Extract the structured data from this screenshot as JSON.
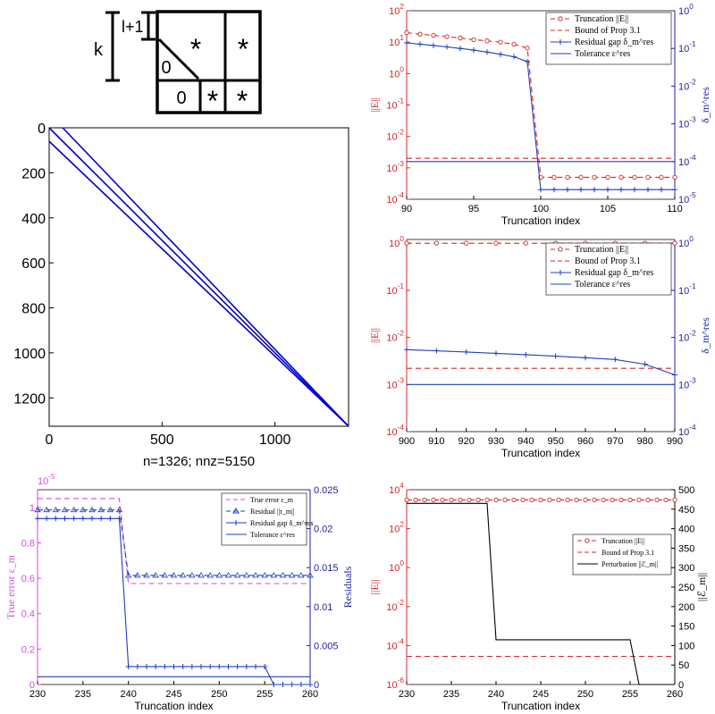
{
  "schematic": {
    "k_label": "k",
    "l_label": "l+1",
    "cells": [
      "*",
      "*",
      "0",
      "0",
      "*",
      "*"
    ]
  },
  "chart_data": [
    {
      "id": "spy",
      "type": "scatter",
      "caption": "n=1326;  nnz=5150",
      "n": 1326,
      "nnz": 5150,
      "xlim": [
        0,
        1326
      ],
      "ylim": [
        0,
        1326
      ],
      "xticks": [
        0,
        500,
        1000
      ],
      "yticks": [
        0,
        200,
        400,
        600,
        800,
        1000,
        1200
      ],
      "series": [
        {
          "x": [
            0,
            1326
          ],
          "y": [
            0,
            1326
          ]
        },
        {
          "x": [
            0,
            1326
          ],
          "y": [
            60,
            1326
          ]
        },
        {
          "x": [
            60,
            1326
          ],
          "y": [
            0,
            1326
          ]
        }
      ],
      "color": "#0000cc"
    },
    {
      "id": "panel-b",
      "type": "line",
      "xlabel": "Truncation index",
      "ylabel_left": "||E||",
      "ylabel_right": "δ_m^res",
      "xlim": [
        90,
        110
      ],
      "xticks": [
        90,
        95,
        100,
        105,
        110
      ],
      "ylim_left": [
        0.0001,
        100.0
      ],
      "ylim_right": [
        1e-05,
        1
      ],
      "yticks_left": [
        "10^-4",
        "10^-3",
        "10^-2",
        "10^-1",
        "10^0",
        "10^1",
        "10^2"
      ],
      "yticks_right": [
        "10^-5",
        "10^-4",
        "10^-3",
        "10^-2",
        "10^-1",
        "10^0"
      ],
      "legend": "top-right",
      "series": [
        {
          "name": "Truncation ||E||",
          "axis": "left",
          "style": "red-dash-circle",
          "x": [
            90,
            91,
            92,
            93,
            94,
            95,
            96,
            97,
            98,
            99,
            100,
            101,
            102,
            103,
            104,
            105,
            106,
            107,
            108,
            109,
            110
          ],
          "y": [
            20,
            18,
            16.5,
            15,
            13.5,
            12,
            11,
            10,
            8.5,
            6.5,
            0.0005,
            0.0005,
            0.0005,
            0.0005,
            0.0005,
            0.0005,
            0.0005,
            0.0005,
            0.0005,
            0.0005,
            0.0005
          ]
        },
        {
          "name": "Bound of Prop 3.1",
          "axis": "left",
          "style": "red-dash",
          "x": [
            90,
            110
          ],
          "y": [
            0.002,
            0.002
          ]
        },
        {
          "name": "Residual gap δ_m^res",
          "axis": "right",
          "style": "blue-plus",
          "x": [
            90,
            91,
            92,
            93,
            94,
            95,
            96,
            97,
            98,
            99,
            100,
            101,
            102,
            103,
            104,
            105,
            106,
            107,
            108,
            109,
            110
          ],
          "y": [
            0.14,
            0.13,
            0.12,
            0.11,
            0.1,
            0.09,
            0.08,
            0.07,
            0.06,
            0.045,
            1.8e-05,
            1.8e-05,
            1.8e-05,
            1.8e-05,
            1.8e-05,
            1.8e-05,
            1.8e-05,
            1.8e-05,
            1.8e-05,
            1.8e-05,
            1.8e-05
          ]
        },
        {
          "name": "Tolerance ε^res",
          "axis": "right",
          "style": "blue-solid",
          "x": [
            90,
            110
          ],
          "y": [
            0.0001,
            0.0001
          ]
        }
      ]
    },
    {
      "id": "panel-c",
      "type": "line",
      "xlabel": "Truncation index",
      "ylabel_left": "||E||",
      "ylabel_right": "δ_m^res",
      "xlim": [
        900,
        990
      ],
      "xticks": [
        900,
        910,
        920,
        930,
        940,
        950,
        960,
        970,
        980,
        990
      ],
      "ylim_left": [
        0.0001,
        1.2
      ],
      "ylim_right": [
        0.0001,
        1.2
      ],
      "yticks_left": [
        "10^-4",
        "10^-3",
        "10^-2",
        "10^-1",
        "10^0"
      ],
      "yticks_right": [
        "10^-4",
        "10^-3",
        "10^-2",
        "10^-1",
        "10^0"
      ],
      "legend": "top-right",
      "series": [
        {
          "name": "Truncation ||E||",
          "axis": "left",
          "style": "red-dash-circle",
          "x": [
            900,
            910,
            920,
            930,
            940,
            950,
            960,
            970,
            980,
            990
          ],
          "y": [
            1,
            1,
            1,
            1,
            1,
            1,
            1,
            1,
            1,
            1
          ]
        },
        {
          "name": "Bound of Prop 3.1",
          "axis": "left",
          "style": "red-dash",
          "x": [
            900,
            990
          ],
          "y": [
            0.0022,
            0.0022
          ]
        },
        {
          "name": "Residual gap δ_m^res",
          "axis": "right",
          "style": "blue-plus",
          "x": [
            900,
            910,
            920,
            930,
            940,
            950,
            960,
            970,
            980,
            990
          ],
          "y": [
            0.0055,
            0.0052,
            0.0049,
            0.0046,
            0.0043,
            0.004,
            0.0037,
            0.0034,
            0.0027,
            0.0016
          ]
        },
        {
          "name": "Tolerance ε^res",
          "axis": "right",
          "style": "blue-solid",
          "x": [
            900,
            990
          ],
          "y": [
            0.001,
            0.001
          ]
        }
      ]
    },
    {
      "id": "panel-d",
      "type": "line",
      "xlabel": "Truncation index",
      "ylabel_left": "True error ε_m",
      "ylabel_right": "Residuals",
      "exponent_label": "×10^-5",
      "xlim": [
        230,
        260
      ],
      "xticks": [
        230,
        235,
        240,
        245,
        250,
        255,
        260
      ],
      "ylim_left": [
        0,
        1.1e-05
      ],
      "ylim_right": [
        0,
        0.025
      ],
      "yticks_left": [
        "0",
        "0.2",
        "0.4",
        "0.6",
        "0.8",
        "1"
      ],
      "yticks_right": [
        "0",
        "0.005",
        "0.01",
        "0.015",
        "0.02",
        "0.025"
      ],
      "legend": "top-right",
      "series": [
        {
          "name": "True error ε_m",
          "axis": "left",
          "style": "magenta-dash",
          "x": [
            230,
            239,
            240,
            260
          ],
          "y": [
            1.05e-05,
            1.05e-05,
            5.7e-06,
            5.7e-06
          ]
        },
        {
          "name": "Residual ||r_m||",
          "axis": "right",
          "style": "blue-dash-triangle",
          "x": [
            230,
            231,
            232,
            233,
            234,
            235,
            236,
            237,
            238,
            239,
            240,
            241,
            242,
            243,
            244,
            245,
            246,
            247,
            248,
            249,
            250,
            251,
            252,
            253,
            254,
            255,
            256,
            257,
            258,
            259,
            260
          ],
          "y": [
            0.0224,
            0.0224,
            0.0224,
            0.0224,
            0.0224,
            0.0224,
            0.0224,
            0.0224,
            0.0224,
            0.0224,
            0.014,
            0.014,
            0.014,
            0.014,
            0.014,
            0.014,
            0.014,
            0.014,
            0.014,
            0.014,
            0.014,
            0.014,
            0.014,
            0.014,
            0.014,
            0.014,
            0.014,
            0.014,
            0.014,
            0.014,
            0.014
          ]
        },
        {
          "name": "Residual gap δ_m^res",
          "axis": "right",
          "style": "blue-plus",
          "x": [
            230,
            231,
            232,
            233,
            234,
            235,
            236,
            237,
            238,
            239,
            240,
            241,
            242,
            243,
            244,
            245,
            246,
            247,
            248,
            249,
            250,
            251,
            252,
            253,
            254,
            255,
            256,
            257,
            258,
            259,
            260
          ],
          "y": [
            0.0213,
            0.0213,
            0.0213,
            0.0213,
            0.0213,
            0.0213,
            0.0213,
            0.0213,
            0.0213,
            0.0213,
            0.0023,
            0.0023,
            0.0023,
            0.0023,
            0.0023,
            0.0023,
            0.0023,
            0.0023,
            0.0023,
            0.0023,
            0.0023,
            0.0023,
            0.0023,
            0.0023,
            0.0023,
            0.0023,
            0,
            0,
            0,
            0,
            0
          ]
        },
        {
          "name": "Tolerance ε^res",
          "axis": "right",
          "style": "blue-solid",
          "x": [
            230,
            260
          ],
          "y": [
            0.001,
            0.001
          ]
        }
      ]
    },
    {
      "id": "panel-e",
      "type": "line",
      "xlabel": "Truncation index",
      "ylabel_left": "||E||",
      "ylabel_right": "||ℰ_m||",
      "xlim": [
        230,
        260
      ],
      "xticks": [
        230,
        235,
        240,
        245,
        250,
        255,
        260
      ],
      "ylim_left": [
        1e-06,
        10000.0
      ],
      "ylim_right": [
        0,
        500
      ],
      "yticks_left": [
        "10^-6",
        "10^-4",
        "10^-2",
        "10^0",
        "10^2",
        "10^4"
      ],
      "yticks_right": [
        "0",
        "50",
        "100",
        "150",
        "200",
        "250",
        "300",
        "350",
        "400",
        "450",
        "500"
      ],
      "legend": "center-right",
      "series": [
        {
          "name": "Truncation ||E||",
          "axis": "left",
          "style": "red-dash-circle",
          "x": [
            230,
            231,
            232,
            233,
            234,
            235,
            236,
            237,
            238,
            239,
            240,
            241,
            242,
            243,
            244,
            245,
            246,
            247,
            248,
            249,
            250,
            251,
            252,
            253,
            254,
            255,
            256,
            257,
            258,
            259,
            260
          ],
          "y": [
            3000,
            3000,
            3000,
            3000,
            3000,
            3000,
            3000,
            3000,
            3000,
            3000,
            3000,
            3000,
            3000,
            3000,
            3000,
            3000,
            3000,
            3000,
            3000,
            3000,
            3000,
            3000,
            3000,
            3000,
            3000,
            3000,
            3000,
            3000,
            3000,
            3000,
            3000
          ]
        },
        {
          "name": "Bound of Prop 3.1",
          "axis": "left",
          "style": "red-dash",
          "x": [
            230,
            260
          ],
          "y": [
            2.8e-05,
            2.8e-05
          ]
        },
        {
          "name": "Perturbation ||ℰ_m||",
          "axis": "right",
          "style": "black-solid",
          "x": [
            230,
            239,
            240,
            255,
            256,
            260
          ],
          "y": [
            465,
            465,
            115,
            115,
            0,
            0
          ]
        }
      ]
    }
  ]
}
